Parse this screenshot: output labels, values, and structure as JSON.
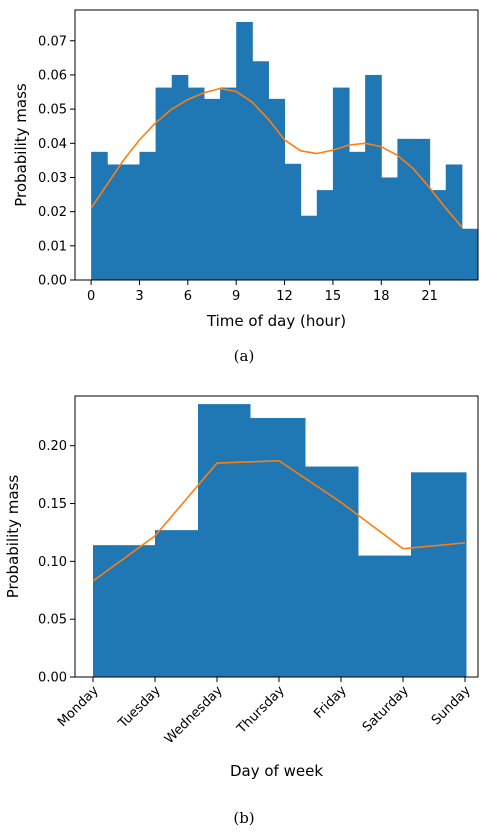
{
  "chart_data": [
    {
      "type": "bar",
      "xlabel": "Time of day (hour)",
      "ylabel": "Probability mass",
      "caption": "(a)",
      "xlim": [
        -1,
        24
      ],
      "ylim": [
        0,
        0.079
      ],
      "xticks": [
        0,
        3,
        6,
        9,
        12,
        15,
        18,
        21
      ],
      "yticks": [
        0.0,
        0.01,
        0.02,
        0.03,
        0.04,
        0.05,
        0.06,
        0.07
      ],
      "ytick_labels": [
        "0.00",
        "0.01",
        "0.02",
        "0.03",
        "0.04",
        "0.05",
        "0.06",
        "0.07"
      ],
      "bar_color": "#1f77b4",
      "line_color": "#ff7f0e",
      "bins": [
        {
          "start": 0,
          "end": 1,
          "value": 0.0375
        },
        {
          "start": 1,
          "end": 2,
          "value": 0.0338
        },
        {
          "start": 2,
          "end": 3,
          "value": 0.0338
        },
        {
          "start": 3,
          "end": 4,
          "value": 0.0375
        },
        {
          "start": 4,
          "end": 5,
          "value": 0.0563
        },
        {
          "start": 5,
          "end": 6,
          "value": 0.06
        },
        {
          "start": 6,
          "end": 7,
          "value": 0.0563
        },
        {
          "start": 7,
          "end": 8,
          "value": 0.053
        },
        {
          "start": 8,
          "end": 9,
          "value": 0.0563
        },
        {
          "start": 9,
          "end": 10,
          "value": 0.0755
        },
        {
          "start": 10,
          "end": 11,
          "value": 0.064
        },
        {
          "start": 11,
          "end": 12,
          "value": 0.053
        },
        {
          "start": 12,
          "end": 13,
          "value": 0.034
        },
        {
          "start": 13,
          "end": 14,
          "value": 0.0188
        },
        {
          "start": 14,
          "end": 15,
          "value": 0.0263
        },
        {
          "start": 15,
          "end": 16,
          "value": 0.0563
        },
        {
          "start": 16,
          "end": 17,
          "value": 0.0375
        },
        {
          "start": 17,
          "end": 18,
          "value": 0.06
        },
        {
          "start": 18,
          "end": 19,
          "value": 0.03
        },
        {
          "start": 19,
          "end": 20,
          "value": 0.0413
        },
        {
          "start": 20,
          "end": 21,
          "value": 0.0413
        },
        {
          "start": 21,
          "end": 22,
          "value": 0.0263
        },
        {
          "start": 22,
          "end": 23,
          "value": 0.0338
        },
        {
          "start": 23,
          "end": 24,
          "value": 0.015
        }
      ],
      "line": {
        "x": [
          0,
          1,
          2,
          3,
          4,
          5,
          6,
          7,
          8,
          9,
          10,
          11,
          12,
          13,
          14,
          15,
          16,
          17,
          18,
          19,
          20,
          21,
          22,
          23
        ],
        "y": [
          0.021,
          0.028,
          0.035,
          0.041,
          0.046,
          0.05,
          0.0528,
          0.0548,
          0.056,
          0.0552,
          0.052,
          0.047,
          0.041,
          0.0378,
          0.037,
          0.038,
          0.0395,
          0.04,
          0.039,
          0.0365,
          0.0325,
          0.027,
          0.021,
          0.0155
        ]
      }
    },
    {
      "type": "bar",
      "xlabel": "Day of week",
      "ylabel": "Probability mass",
      "caption": "(b)",
      "categories": [
        "Monday",
        "Tuesday",
        "Wednesday",
        "Thursday",
        "Friday",
        "Saturday",
        "Sunday"
      ],
      "ylim": [
        0,
        0.243
      ],
      "yticks": [
        0.0,
        0.05,
        0.1,
        0.15,
        0.2
      ],
      "ytick_labels": [
        "0.00",
        "0.05",
        "0.10",
        "0.15",
        "0.20"
      ],
      "bar_color": "#1f77b4",
      "line_color": "#ff7f0e",
      "bar_values": [
        0.114,
        0.127,
        0.236,
        0.224,
        0.182,
        0.105,
        0.177
      ],
      "line_values": [
        0.083,
        0.122,
        0.185,
        0.187,
        0.151,
        0.111,
        0.116
      ]
    }
  ]
}
